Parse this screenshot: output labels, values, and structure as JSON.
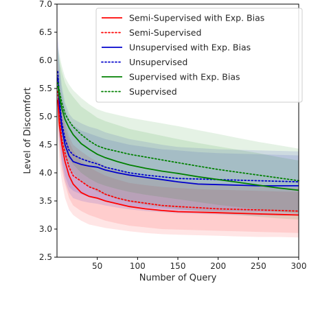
{
  "chart_data": {
    "type": "line",
    "title": "",
    "xlabel": "Number of Query",
    "ylabel": "Level of Discomfort",
    "xlim": [
      0,
      300
    ],
    "ylim": [
      2.5,
      7.0
    ],
    "xticks": [
      50,
      100,
      150,
      200,
      250,
      300
    ],
    "yticks": [
      2.5,
      3.0,
      3.5,
      4.0,
      4.5,
      5.0,
      5.5,
      6.0,
      6.5,
      7.0
    ],
    "grid": false,
    "legend_position": "top-right",
    "series": [
      {
        "name": "Semi-Supervised with Exp. Bias",
        "color": "#ff0000",
        "style": "solid",
        "x": [
          1,
          3,
          6,
          10,
          15,
          20,
          30,
          40,
          50,
          60,
          75,
          90,
          110,
          130,
          150,
          175,
          200,
          225,
          250,
          275,
          300
        ],
        "y": [
          5.3,
          4.85,
          4.5,
          4.2,
          3.95,
          3.8,
          3.65,
          3.58,
          3.55,
          3.5,
          3.45,
          3.4,
          3.36,
          3.33,
          3.31,
          3.3,
          3.29,
          3.28,
          3.27,
          3.26,
          3.25
        ],
        "band_low": [
          4.7,
          4.2,
          3.85,
          3.55,
          3.35,
          3.25,
          3.15,
          3.08,
          3.05,
          3.02,
          2.99,
          2.96,
          2.93,
          2.91,
          2.9,
          2.89,
          2.88,
          2.87,
          2.86,
          2.86,
          2.85
        ],
        "band_high": [
          5.9,
          5.4,
          5.1,
          4.8,
          4.55,
          4.4,
          4.2,
          4.1,
          4.02,
          3.95,
          3.88,
          3.82,
          3.78,
          3.75,
          3.73,
          3.71,
          3.7,
          3.69,
          3.68,
          3.67,
          3.66
        ]
      },
      {
        "name": "Semi-Supervised",
        "color": "#ff0000",
        "style": "dotted",
        "x": [
          1,
          3,
          6,
          10,
          15,
          20,
          30,
          40,
          50,
          60,
          75,
          90,
          110,
          130,
          150,
          175,
          200,
          225,
          250,
          275,
          300
        ],
        "y": [
          5.45,
          5.0,
          4.6,
          4.35,
          4.1,
          3.95,
          3.85,
          3.75,
          3.7,
          3.62,
          3.55,
          3.5,
          3.46,
          3.42,
          3.4,
          3.38,
          3.36,
          3.35,
          3.34,
          3.33,
          3.32
        ],
        "band_low": [
          4.85,
          4.4,
          4.05,
          3.8,
          3.55,
          3.42,
          3.32,
          3.25,
          3.2,
          3.15,
          3.1,
          3.06,
          3.03,
          3.0,
          2.99,
          2.98,
          2.97,
          2.96,
          2.95,
          2.94,
          2.93
        ],
        "band_high": [
          6.05,
          5.6,
          5.2,
          4.9,
          4.65,
          4.5,
          4.38,
          4.28,
          4.2,
          4.12,
          4.05,
          3.98,
          3.93,
          3.88,
          3.85,
          3.82,
          3.8,
          3.78,
          3.76,
          3.75,
          3.74
        ]
      },
      {
        "name": "Unsupervised with Exp. Bias",
        "color": "#0000cc",
        "style": "solid",
        "x": [
          1,
          3,
          6,
          10,
          15,
          20,
          30,
          40,
          50,
          60,
          75,
          90,
          110,
          130,
          150,
          175,
          200,
          225,
          250,
          275,
          300
        ],
        "y": [
          5.7,
          5.2,
          4.8,
          4.5,
          4.3,
          4.2,
          4.15,
          4.12,
          4.1,
          4.05,
          4.0,
          3.96,
          3.92,
          3.88,
          3.84,
          3.8,
          3.79,
          3.78,
          3.77,
          3.77,
          3.77
        ],
        "band_low": [
          5.0,
          4.55,
          4.15,
          3.85,
          3.65,
          3.55,
          3.5,
          3.47,
          3.45,
          3.42,
          3.38,
          3.35,
          3.32,
          3.3,
          3.28,
          3.27,
          3.26,
          3.25,
          3.24,
          3.24,
          3.24
        ],
        "band_high": [
          6.4,
          5.85,
          5.45,
          5.15,
          4.95,
          4.85,
          4.75,
          4.7,
          4.65,
          4.6,
          4.55,
          4.5,
          4.46,
          4.42,
          4.4,
          4.37,
          4.35,
          4.34,
          4.33,
          4.32,
          4.31
        ]
      },
      {
        "name": "Unsupervised",
        "color": "#0000cc",
        "style": "dotted",
        "x": [
          1,
          3,
          6,
          10,
          15,
          20,
          30,
          40,
          50,
          60,
          75,
          90,
          110,
          130,
          150,
          175,
          200,
          225,
          250,
          275,
          300
        ],
        "y": [
          5.8,
          5.3,
          4.9,
          4.6,
          4.4,
          4.32,
          4.25,
          4.2,
          4.16,
          4.1,
          4.05,
          4.0,
          3.96,
          3.93,
          3.9,
          3.89,
          3.88,
          3.87,
          3.86,
          3.85,
          3.84
        ],
        "band_low": [
          5.1,
          4.65,
          4.25,
          3.95,
          3.75,
          3.68,
          3.62,
          3.57,
          3.53,
          3.49,
          3.45,
          3.41,
          3.38,
          3.36,
          3.34,
          3.33,
          3.32,
          3.32,
          3.31,
          3.31,
          3.3
        ],
        "band_high": [
          6.5,
          5.95,
          5.55,
          5.25,
          5.05,
          4.96,
          4.88,
          4.82,
          4.78,
          4.72,
          4.66,
          4.6,
          4.55,
          4.5,
          4.46,
          4.44,
          4.42,
          4.41,
          4.4,
          4.39,
          4.38
        ]
      },
      {
        "name": "Supervised with Exp. Bias",
        "color": "#008000",
        "style": "solid",
        "x": [
          1,
          3,
          6,
          10,
          15,
          20,
          30,
          40,
          50,
          60,
          75,
          90,
          110,
          130,
          150,
          175,
          200,
          225,
          250,
          275,
          300
        ],
        "y": [
          5.55,
          5.35,
          5.15,
          4.95,
          4.8,
          4.68,
          4.52,
          4.42,
          4.33,
          4.27,
          4.2,
          4.14,
          4.08,
          4.03,
          3.99,
          3.93,
          3.88,
          3.83,
          3.78,
          3.73,
          3.69
        ],
        "band_low": [
          4.9,
          4.7,
          4.5,
          4.3,
          4.12,
          4.0,
          3.85,
          3.75,
          3.66,
          3.6,
          3.53,
          3.48,
          3.43,
          3.39,
          3.36,
          3.32,
          3.28,
          3.25,
          3.22,
          3.19,
          3.17
        ],
        "band_high": [
          6.2,
          6.0,
          5.8,
          5.6,
          5.45,
          5.35,
          5.18,
          5.08,
          4.98,
          4.92,
          4.85,
          4.78,
          4.72,
          4.66,
          4.6,
          4.53,
          4.47,
          4.41,
          4.35,
          4.28,
          4.22
        ]
      },
      {
        "name": "Supervised",
        "color": "#008000",
        "style": "dotted",
        "x": [
          1,
          3,
          6,
          10,
          15,
          20,
          30,
          40,
          50,
          60,
          75,
          90,
          110,
          130,
          150,
          175,
          200,
          225,
          250,
          275,
          300
        ],
        "y": [
          5.6,
          5.45,
          5.25,
          5.05,
          4.92,
          4.82,
          4.68,
          4.57,
          4.48,
          4.43,
          4.38,
          4.33,
          4.28,
          4.23,
          4.18,
          4.12,
          4.06,
          4.01,
          3.96,
          3.91,
          3.86
        ],
        "band_low": [
          4.95,
          4.8,
          4.6,
          4.4,
          4.25,
          4.15,
          4.0,
          3.9,
          3.82,
          3.77,
          3.71,
          3.66,
          3.61,
          3.57,
          3.53,
          3.48,
          3.43,
          3.39,
          3.35,
          3.31,
          3.28
        ],
        "band_high": [
          6.25,
          6.1,
          5.9,
          5.7,
          5.57,
          5.47,
          5.33,
          5.22,
          5.13,
          5.08,
          5.03,
          4.98,
          4.93,
          4.88,
          4.83,
          4.76,
          4.69,
          4.62,
          4.55,
          4.49,
          4.43
        ]
      }
    ]
  }
}
